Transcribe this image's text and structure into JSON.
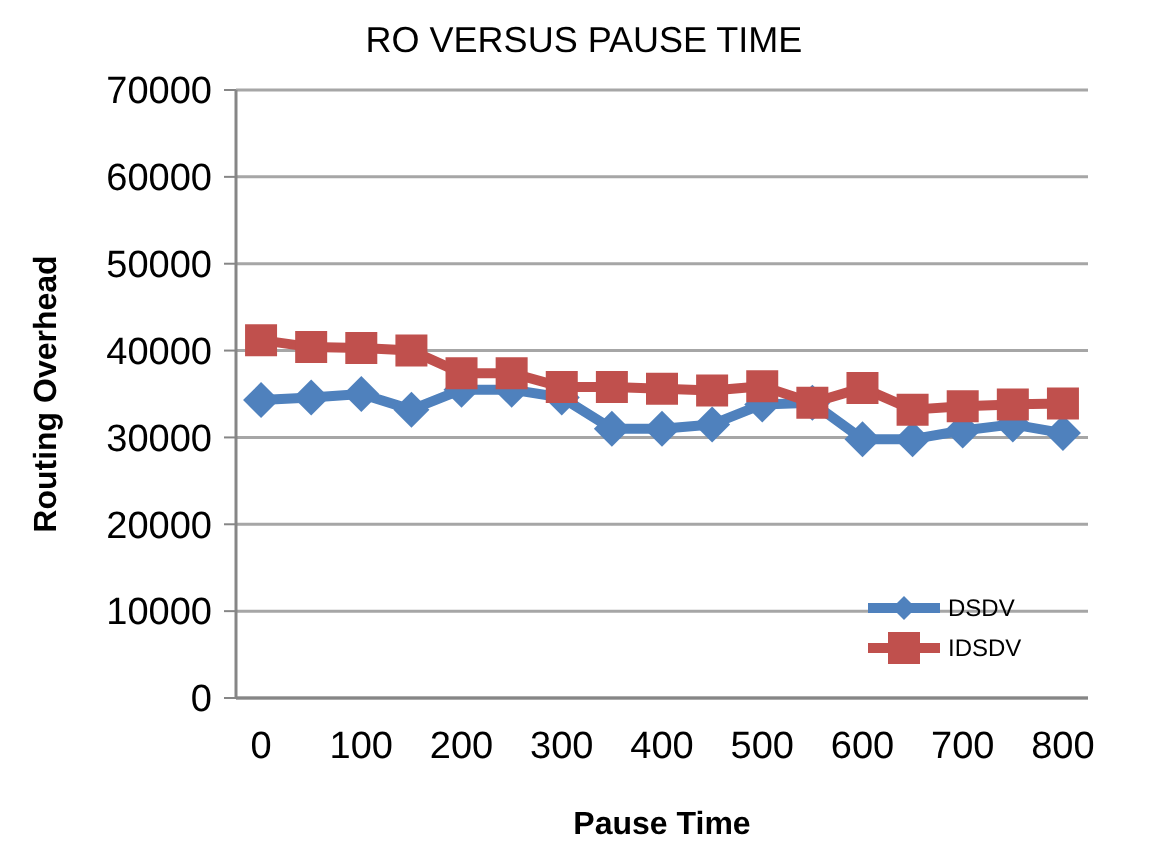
{
  "chart_data": {
    "type": "line",
    "title": "RO VERSUS PAUSE TIME",
    "xlabel": "Pause Time",
    "ylabel": "Routing Overhead",
    "x": [
      0,
      50,
      100,
      150,
      200,
      250,
      300,
      350,
      400,
      450,
      500,
      550,
      600,
      650,
      700,
      750,
      800
    ],
    "xlim": [
      -25,
      825
    ],
    "xticks": [
      0,
      100,
      200,
      300,
      400,
      500,
      600,
      700,
      800
    ],
    "ylim": [
      0,
      70000
    ],
    "yticks": [
      0,
      10000,
      20000,
      30000,
      40000,
      50000,
      60000,
      70000
    ],
    "grid": "y",
    "legend": "bottom right",
    "series": [
      {
        "name": "DSDV",
        "color": "#4f81bd",
        "marker": "diamond",
        "values": [
          34300,
          34600,
          35000,
          33200,
          35500,
          35500,
          34600,
          31000,
          31000,
          31500,
          33800,
          34000,
          29800,
          29800,
          30800,
          31500,
          30500
        ]
      },
      {
        "name": "IDSDV",
        "color": "#c0504d",
        "marker": "square",
        "values": [
          41200,
          40400,
          40300,
          40000,
          37400,
          37400,
          35800,
          35800,
          35600,
          35400,
          35900,
          34000,
          35700,
          33200,
          33600,
          33800,
          33900
        ]
      }
    ]
  }
}
